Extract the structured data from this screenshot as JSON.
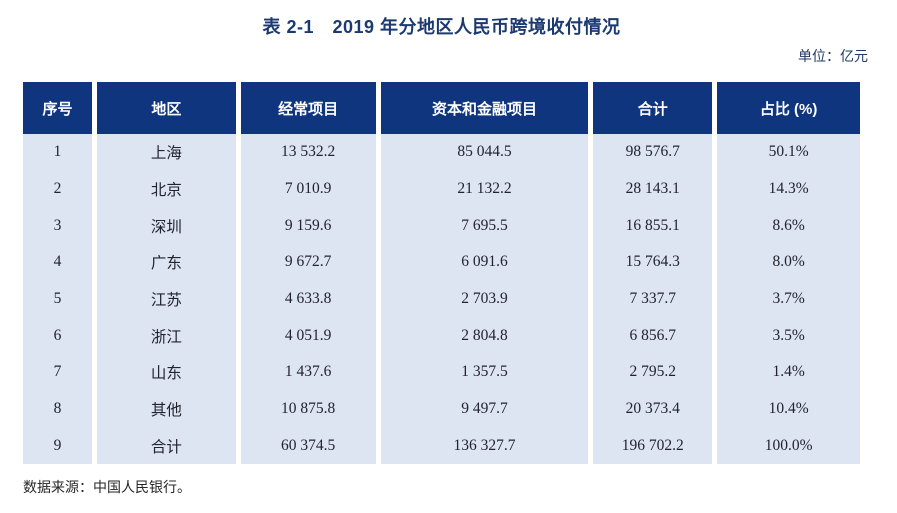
{
  "title": "表 2-1　2019 年分地区人民币跨境收付情况",
  "unit_label": "单位：亿元",
  "source_note": "数据来源：中国人民银行。",
  "colors": {
    "header_bg": "#0f357e",
    "row_bg": "#dde4f2",
    "title_color": "#1c3a70",
    "unit_color": "#1f3864",
    "body_text": "#21242e",
    "source_text": "#262626"
  },
  "table": {
    "columns": [
      "序号",
      "地区",
      "经常项目",
      "资本和金融项目",
      "合计",
      "占比 (%)"
    ],
    "column_keys": [
      "no",
      "region",
      "current-account",
      "capital-financial-account",
      "total",
      "share"
    ],
    "rows": [
      [
        "1",
        "上海",
        "13 532.2",
        "85 044.5",
        "98 576.7",
        "50.1%"
      ],
      [
        "2",
        "北京",
        "7 010.9",
        "21 132.2",
        "28 143.1",
        "14.3%"
      ],
      [
        "3",
        "深圳",
        "9 159.6",
        "7 695.5",
        "16 855.1",
        "8.6%"
      ],
      [
        "4",
        "广东",
        "9 672.7",
        "6 091.6",
        "15 764.3",
        "8.0%"
      ],
      [
        "5",
        "江苏",
        "4 633.8",
        "2 703.9",
        "7 337.7",
        "3.7%"
      ],
      [
        "6",
        "浙江",
        "4 051.9",
        "2 804.8",
        "6 856.7",
        "3.5%"
      ],
      [
        "7",
        "山东",
        "1 437.6",
        "1 357.5",
        "2 795.2",
        "1.4%"
      ],
      [
        "8",
        "其他",
        "10 875.8",
        "9 497.7",
        "20 373.4",
        "10.4%"
      ],
      [
        "9",
        "合计",
        "60 374.5",
        "136 327.7",
        "196 702.2",
        "100.0%"
      ]
    ]
  },
  "chart_data": {
    "type": "table",
    "title": "表 2-1　2019 年分地区人民币跨境收付情况",
    "unit": "亿元",
    "columns": [
      "序号",
      "地区",
      "经常项目",
      "资本和金融项目",
      "合计",
      "占比 (%)"
    ],
    "rows": [
      [
        1,
        "上海",
        13532.2,
        85044.5,
        98576.7,
        "50.1%"
      ],
      [
        2,
        "北京",
        7010.9,
        21132.2,
        28143.1,
        "14.3%"
      ],
      [
        3,
        "深圳",
        9159.6,
        7695.5,
        16855.1,
        "8.6%"
      ],
      [
        4,
        "广东",
        9672.7,
        6091.6,
        15764.3,
        "8.0%"
      ],
      [
        5,
        "江苏",
        4633.8,
        2703.9,
        7337.7,
        "3.7%"
      ],
      [
        6,
        "浙江",
        4051.9,
        2804.8,
        6856.7,
        "3.5%"
      ],
      [
        7,
        "山东",
        1437.6,
        1357.5,
        2795.2,
        "1.4%"
      ],
      [
        8,
        "其他",
        10875.8,
        9497.7,
        20373.4,
        "10.4%"
      ],
      [
        9,
        "合计",
        60374.5,
        136327.7,
        196702.2,
        "100.0%"
      ]
    ],
    "source": "数据来源：中国人民银行。"
  }
}
